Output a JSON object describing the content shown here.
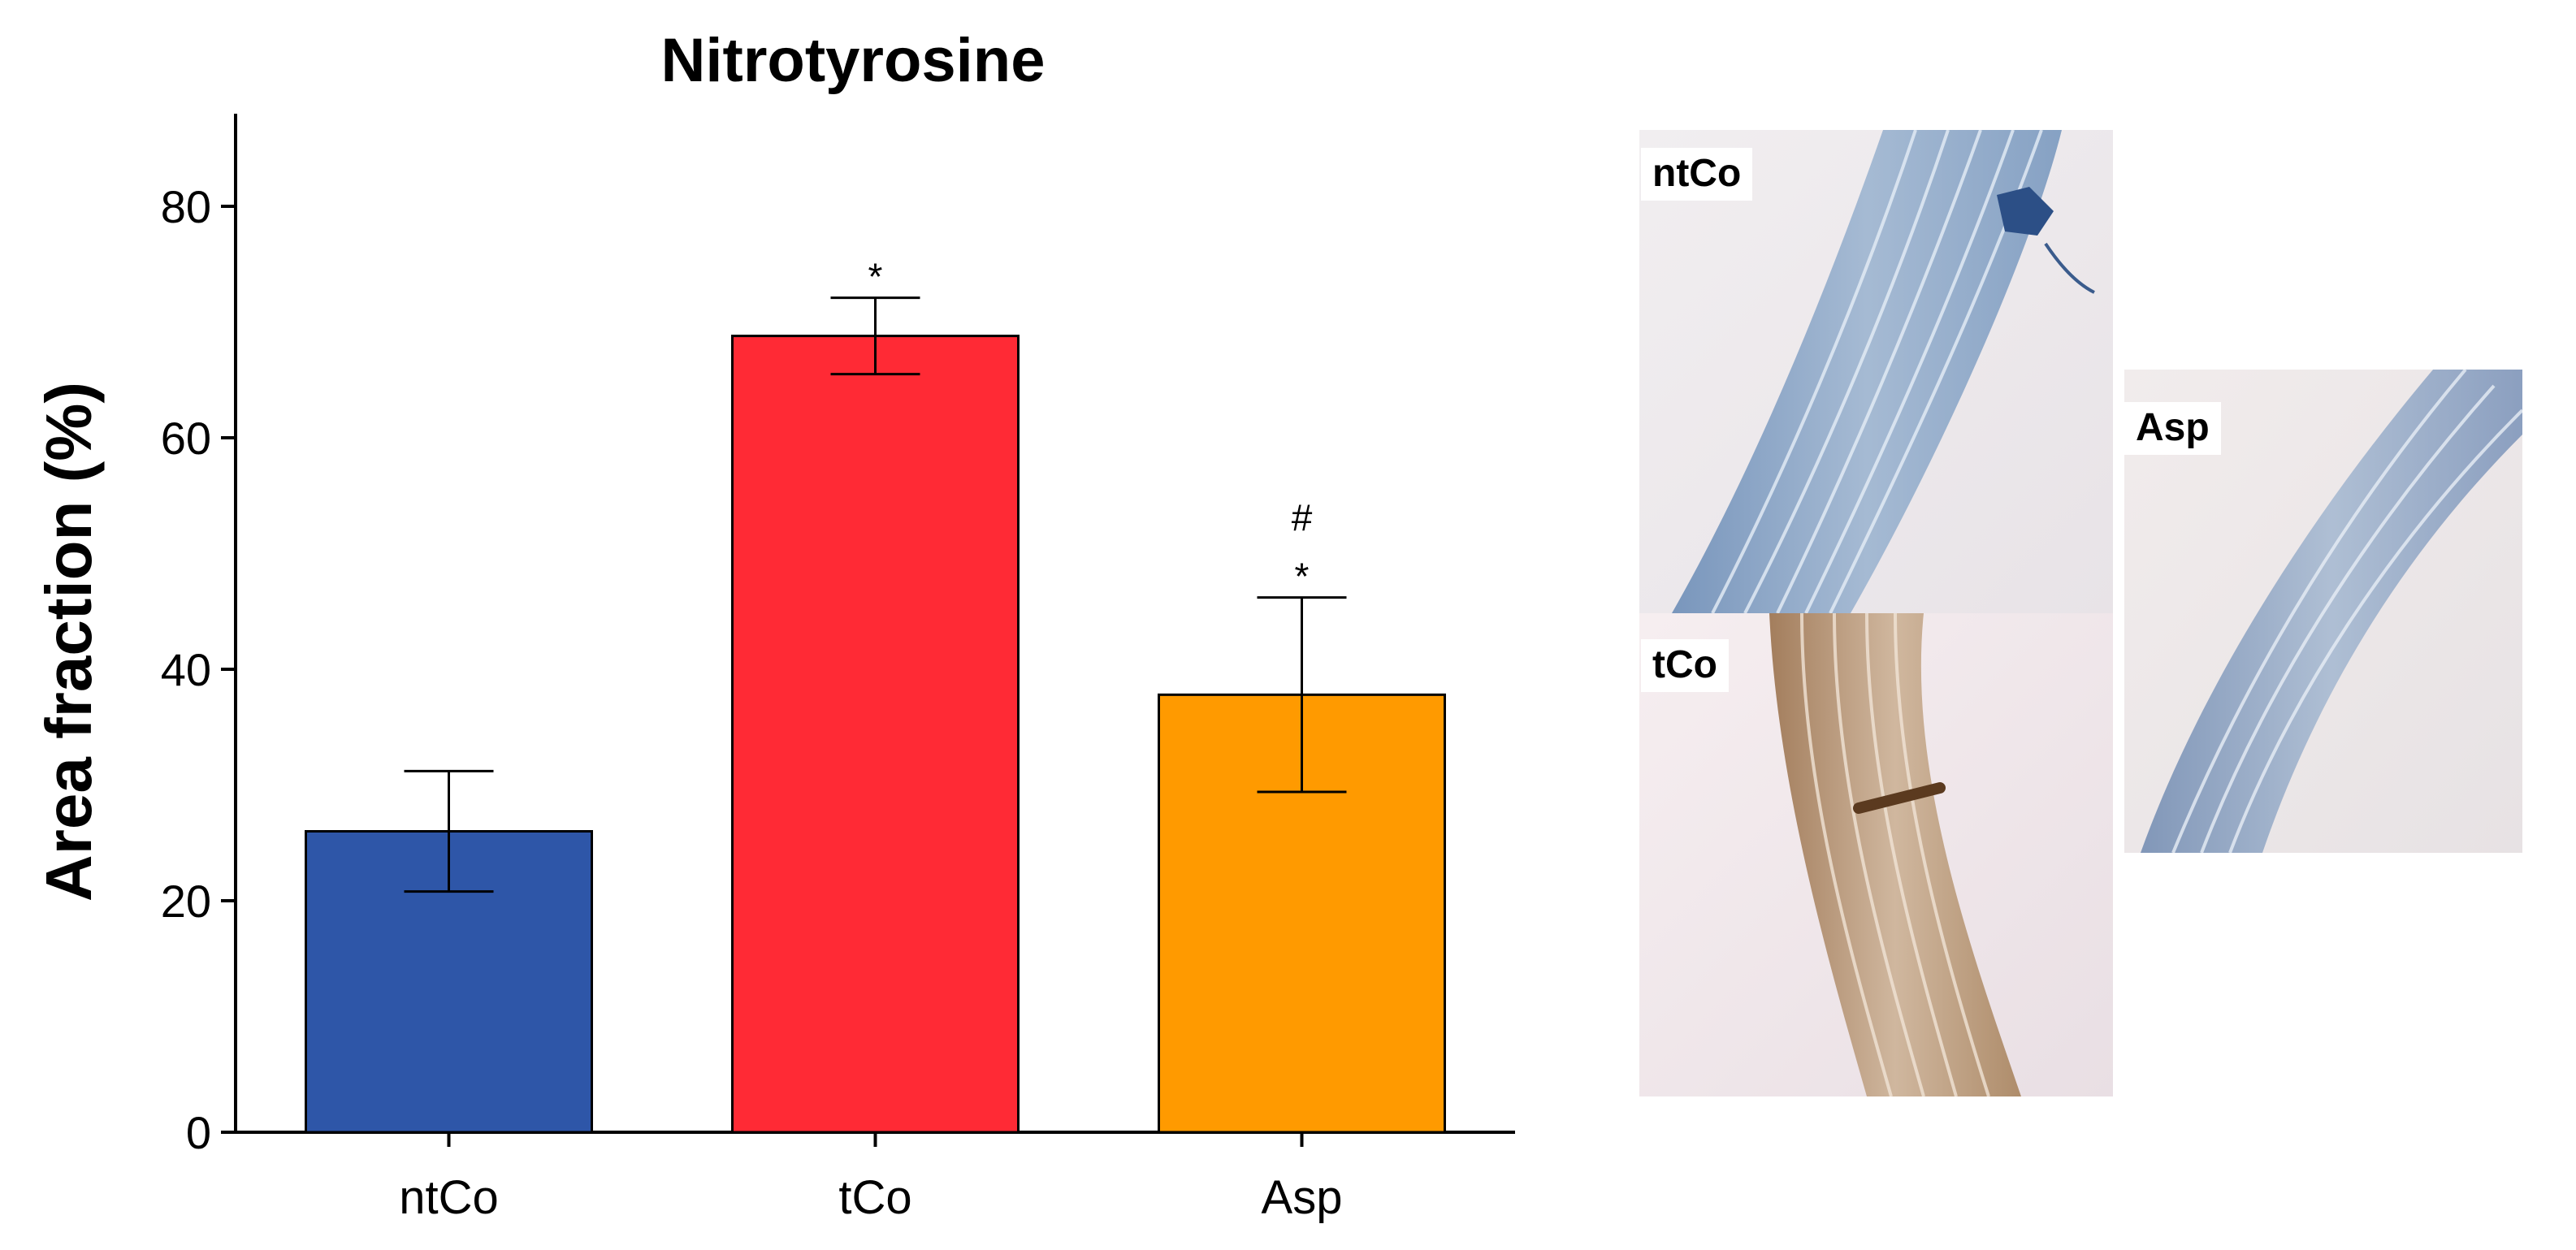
{
  "chart_data": {
    "type": "bar",
    "title": "Nitrotyrosine",
    "ylabel": "Area fraction (%)",
    "xlabel": "",
    "categories": [
      "ntCo",
      "tCo",
      "Asp"
    ],
    "values": [
      26,
      68.8,
      37.8
    ],
    "errors": [
      5.2,
      3.3,
      8.4
    ],
    "ylim": [
      0,
      88
    ],
    "yticks": [
      0,
      20,
      40,
      60,
      80
    ],
    "colors": [
      "#2e56a8",
      "#ff2a35",
      "#ff9a00"
    ],
    "annotations": [
      {
        "category": "tCo",
        "lines": [
          "*"
        ]
      },
      {
        "category": "Asp",
        "lines": [
          "#",
          "*"
        ]
      }
    ],
    "grid": false
  },
  "panels": [
    {
      "label": "ntCo",
      "stain": "blue"
    },
    {
      "label": "tCo",
      "stain": "brown"
    },
    {
      "label": "Asp",
      "stain": "blue"
    }
  ]
}
